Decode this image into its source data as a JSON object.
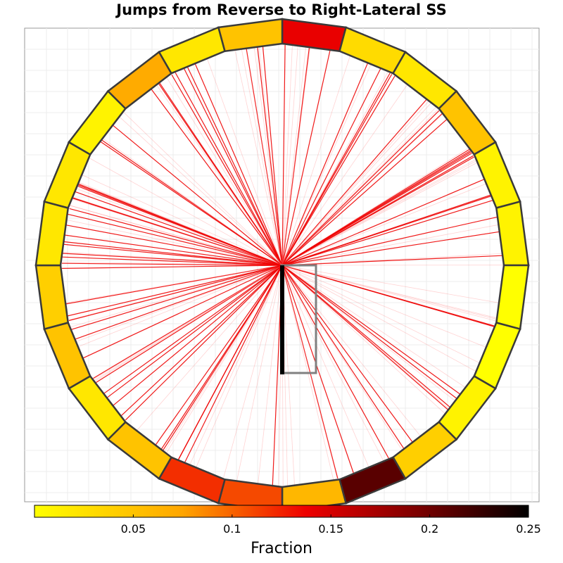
{
  "chart_data": {
    "type": "polar-segment-jump-diagram",
    "title": "Jumps from Reverse to Right-Lateral SS",
    "colorbar": {
      "label": "Fraction",
      "range": [
        0,
        0.25
      ],
      "colormap": "hot-reversed",
      "ticks": [
        0.05,
        0.1,
        0.15,
        0.2,
        0.25
      ],
      "tick_labels": [
        "0.05",
        "0.1",
        "0.15",
        "0.2",
        "0.25"
      ]
    },
    "ring_segments": {
      "start_angle_deg": 90,
      "direction": "clockwise",
      "count": 24,
      "fractions": [
        0.14,
        0.03,
        0.02,
        0.05,
        0.01,
        0.01,
        0.0,
        0.0,
        0.01,
        0.04,
        0.21,
        0.06,
        0.11,
        0.12,
        0.05,
        0.02,
        0.05,
        0.04,
        0.02,
        0.02,
        0.01,
        0.07,
        0.02,
        0.05
      ]
    },
    "grid": true,
    "legend": "bottom"
  }
}
